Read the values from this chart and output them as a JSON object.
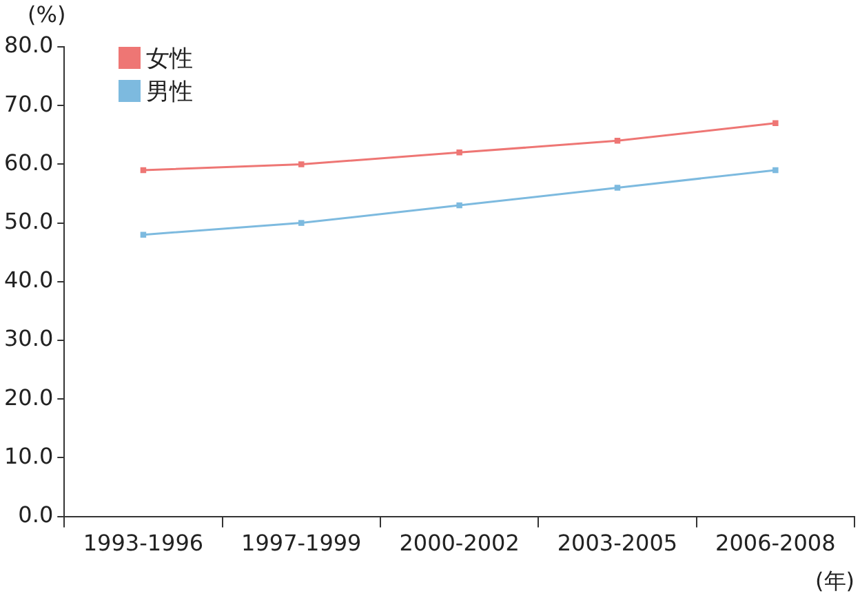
{
  "chart_data": {
    "type": "line",
    "ylabel": "(%)",
    "xlabel": "(年)",
    "categories": [
      "1993-1996",
      "1997-1999",
      "2000-2002",
      "2003-2005",
      "2006-2008"
    ],
    "series": [
      {
        "name": "女性",
        "color": "#ee7674",
        "values": [
          59,
          60,
          62,
          64,
          67
        ]
      },
      {
        "name": "男性",
        "color": "#7dbadf",
        "values": [
          48,
          50,
          53,
          56,
          59
        ]
      }
    ],
    "ylim": [
      0,
      80
    ],
    "yticks": [
      {
        "value": 0,
        "label": "0.0"
      },
      {
        "value": 10,
        "label": "10.0"
      },
      {
        "value": 20,
        "label": "20.0"
      },
      {
        "value": 30,
        "label": "30.0"
      },
      {
        "value": 40,
        "label": "40.0"
      },
      {
        "value": 50,
        "label": "50.0"
      },
      {
        "value": 60,
        "label": "60.0"
      },
      {
        "value": 70,
        "label": "70.0"
      },
      {
        "value": 80,
        "label": "80.0"
      }
    ],
    "legend": "top left",
    "marker": "square",
    "line_style": "solid",
    "grid": false
  }
}
